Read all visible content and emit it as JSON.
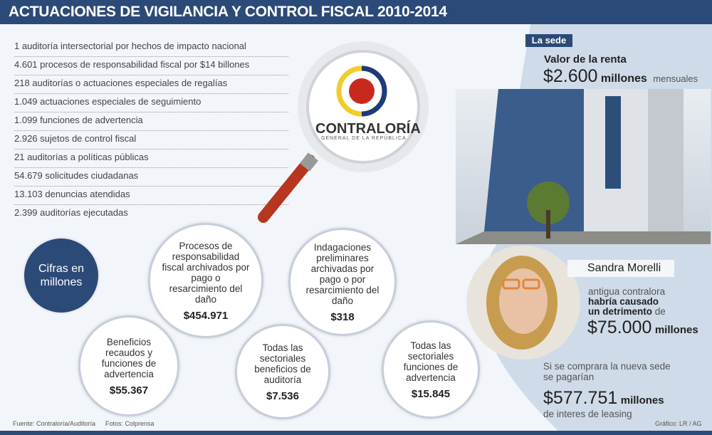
{
  "title": "ACTUACIONES DE VIGILANCIA Y CONTROL FISCAL 2010-2014",
  "list": [
    "1 auditoría intersectorial por hechos de impacto nacional",
    "4.601 procesos de responsabilidad fiscal por $14 billones",
    "218 auditorías o actuaciones especiales de regalías",
    "1.049 actuaciones especiales de seguimiento",
    "1.099 funciones de advertencia",
    "2.926 sujetos de control fiscal",
    "21 auditorías a políticas públicas",
    "54.679 solicitudes ciudadanas",
    "13.103 denuncias atendidas",
    "2.399 auditorías ejecutadas"
  ],
  "logo": {
    "name": "CONTRALORÍA",
    "sub": "GENERAL DE LA REPÚBLICA"
  },
  "cifras": "Cifras en millones",
  "circles": [
    {
      "label": "Procesos de responsabilidad fiscal archivados por pago o resarcimiento del daño",
      "value": "$454.971"
    },
    {
      "label": "Indagaciones preliminares archivadas por pago o por resarcimiento del daño",
      "value": "$318"
    },
    {
      "label": "Beneficios recaudos y funciones de advertencia",
      "value": "$55.367"
    },
    {
      "label": "Todas las sectoriales beneficios de auditoría",
      "value": "$7.536"
    },
    {
      "label": "Todas las sectoriales funciones de advertencia",
      "value": "$15.845"
    }
  ],
  "sede": {
    "tag": "La sede",
    "renta_label": "Valor de la renta",
    "renta_value": "$2.600",
    "renta_unit": "millones",
    "renta_suffix": "mensuales"
  },
  "person": {
    "name": "Sandra Morelli",
    "line1": "antigua contralora",
    "line2": "habría causado",
    "line3": "un detrimento",
    "line3b": "de",
    "amount": "$75.000",
    "amount_unit": "millones"
  },
  "compra": {
    "line1": "Si se comprara la nueva sede",
    "line2": "se pagarían",
    "amount": "$577.751",
    "unit": "millones",
    "line3": "de interes de leasing"
  },
  "footer": {
    "source": "Fuente: Contraloría/Auditoría",
    "photos": "Fotos: Colprensa",
    "credit": "Gráfico: LR / AG"
  },
  "colors": {
    "title_bar": "#2c4a78",
    "panel": "#cfdbe8",
    "cifras_circle": "#2c4a78"
  }
}
